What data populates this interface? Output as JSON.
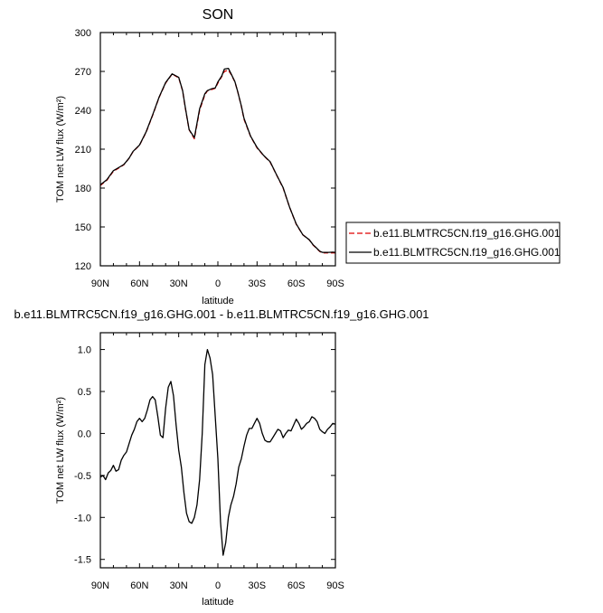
{
  "chart_data": [
    {
      "type": "line",
      "title": "SON",
      "xlabel": "latitude",
      "ylabel": "TOM net LW flux (W/m²)",
      "xlim": [
        90,
        -90
      ],
      "ylim": [
        120,
        300
      ],
      "xticks": [
        {
          "v": 90,
          "label": "90N"
        },
        {
          "v": 60,
          "label": "60N"
        },
        {
          "v": 30,
          "label": "30N"
        },
        {
          "v": 0,
          "label": "0"
        },
        {
          "v": -30,
          "label": "30S"
        },
        {
          "v": -60,
          "label": "60S"
        },
        {
          "v": -90,
          "label": "90S"
        }
      ],
      "yticks": [
        {
          "v": 120,
          "label": "120"
        },
        {
          "v": 150,
          "label": "150"
        },
        {
          "v": 180,
          "label": "180"
        },
        {
          "v": 210,
          "label": "210"
        },
        {
          "v": 240,
          "label": "240"
        },
        {
          "v": 270,
          "label": "270"
        },
        {
          "v": 300,
          "label": "300"
        }
      ],
      "legend_position": "right",
      "series": [
        {
          "name": "b.e11.BLMTRC5CN.f19_g16.GHG.001",
          "color": "#e00000",
          "dash": "dashed",
          "x": [
            90,
            85,
            80,
            75,
            72,
            68,
            65,
            60,
            55,
            50,
            45,
            40,
            35,
            30,
            27,
            25,
            22,
            18,
            14,
            10,
            8,
            5,
            2,
            0,
            -3,
            -5,
            -8,
            -10,
            -13,
            -15,
            -18,
            -20,
            -25,
            -30,
            -35,
            -40,
            -45,
            -50,
            -55,
            -60,
            -65,
            -70,
            -73,
            -75,
            -78,
            -80,
            -83,
            -85,
            -88,
            -90
          ],
          "y": [
            182,
            186,
            193,
            196,
            198,
            203,
            208,
            213,
            223,
            236,
            250,
            261,
            268,
            265,
            255,
            242,
            225,
            218,
            240,
            252,
            255,
            256,
            257,
            261,
            266,
            270,
            271,
            268,
            262,
            255,
            243,
            233,
            220,
            211,
            205,
            200,
            190,
            180,
            165,
            152,
            144,
            140,
            136,
            134,
            131,
            130,
            130,
            130,
            130,
            130
          ]
        },
        {
          "name": "b.e11.BLMTRC5CN.f19_g16.GHG.001",
          "color": "#000000",
          "dash": "solid",
          "x": [
            90,
            85,
            80,
            75,
            72,
            68,
            65,
            60,
            55,
            50,
            45,
            40,
            35,
            30,
            27,
            25,
            22,
            18,
            14,
            10,
            8,
            5,
            2,
            0,
            -3,
            -5,
            -8,
            -10,
            -13,
            -15,
            -18,
            -20,
            -25,
            -30,
            -35,
            -40,
            -45,
            -50,
            -55,
            -60,
            -65,
            -70,
            -73,
            -75,
            -78,
            -80,
            -83,
            -85,
            -88,
            -90
          ],
          "y": [
            182.5,
            186.4,
            193.4,
            196.4,
            198.2,
            203.1,
            208.2,
            213.2,
            223.3,
            236.4,
            250.2,
            261.4,
            268.1,
            265.4,
            255.2,
            242.5,
            225.1,
            218.9,
            241.1,
            252.8,
            255.2,
            256.5,
            257.2,
            261.9,
            266.5,
            271.8,
            272.4,
            268.5,
            262.2,
            255.1,
            243.2,
            233.8,
            220.2,
            211.4,
            205.2,
            200.4,
            190.1,
            180.3,
            165.1,
            152.3,
            144.0,
            140.1,
            136.2,
            134.3,
            131.3,
            130.4,
            130.3,
            130.4,
            130.5,
            130.4
          ]
        }
      ]
    },
    {
      "type": "line",
      "title": "b.e11.BLMTRC5CN.f19_g16.GHG.001 - b.e11.BLMTRC5CN.f19_g16.GHG.001",
      "xlabel": "latitude",
      "ylabel": "TOM net LW flux (W/m²)",
      "xlim": [
        90,
        -90
      ],
      "ylim": [
        -1.6,
        1.2
      ],
      "xticks": [
        {
          "v": 90,
          "label": "90N"
        },
        {
          "v": 60,
          "label": "60N"
        },
        {
          "v": 30,
          "label": "30N"
        },
        {
          "v": 0,
          "label": "0"
        },
        {
          "v": -30,
          "label": "30S"
        },
        {
          "v": -60,
          "label": "60S"
        },
        {
          "v": -90,
          "label": "90S"
        }
      ],
      "yticks": [
        {
          "v": 1.0,
          "label": "1.0"
        },
        {
          "v": 0.5,
          "label": "0.5"
        },
        {
          "v": 0.0,
          "label": "0.0"
        },
        {
          "v": -0.5,
          "label": "-0.5"
        },
        {
          "v": -1.0,
          "label": "-1.0"
        },
        {
          "v": -1.5,
          "label": "-1.5"
        }
      ],
      "series": [
        {
          "color": "#000000",
          "dash": "solid",
          "x": [
            90,
            88,
            86,
            84,
            82,
            80,
            78,
            76,
            74,
            72,
            70,
            68,
            66,
            64,
            62,
            60,
            58,
            56,
            54,
            52,
            50,
            48,
            46,
            44,
            42,
            40,
            38,
            36,
            34,
            32,
            30,
            28,
            26,
            24,
            22,
            20,
            18,
            16,
            14,
            12,
            10,
            8,
            6,
            4,
            2,
            0,
            -2,
            -4,
            -6,
            -8,
            -10,
            -12,
            -14,
            -16,
            -18,
            -20,
            -22,
            -24,
            -26,
            -28,
            -30,
            -32,
            -34,
            -36,
            -38,
            -40,
            -42,
            -44,
            -46,
            -48,
            -50,
            -52,
            -54,
            -56,
            -58,
            -60,
            -62,
            -64,
            -66,
            -68,
            -70,
            -72,
            -74,
            -76,
            -78,
            -80,
            -82,
            -84,
            -86,
            -88,
            -90
          ],
          "y": [
            -0.52,
            -0.5,
            -0.55,
            -0.47,
            -0.44,
            -0.38,
            -0.45,
            -0.43,
            -0.32,
            -0.26,
            -0.22,
            -0.12,
            -0.02,
            0.05,
            0.14,
            0.18,
            0.14,
            0.18,
            0.28,
            0.4,
            0.44,
            0.4,
            0.2,
            -0.02,
            -0.05,
            0.3,
            0.55,
            0.62,
            0.45,
            0.1,
            -0.2,
            -0.4,
            -0.7,
            -0.95,
            -1.05,
            -1.07,
            -1.0,
            -0.85,
            -0.55,
            0.0,
            0.82,
            1.0,
            0.9,
            0.7,
            0.2,
            -0.3,
            -1.05,
            -1.45,
            -1.3,
            -1.0,
            -0.85,
            -0.75,
            -0.6,
            -0.4,
            -0.3,
            -0.15,
            -0.02,
            0.06,
            0.06,
            0.12,
            0.18,
            0.12,
            0.0,
            -0.08,
            -0.1,
            -0.1,
            -0.05,
            0.0,
            0.05,
            0.03,
            -0.05,
            0.0,
            0.04,
            0.03,
            0.1,
            0.17,
            0.12,
            0.05,
            0.08,
            0.12,
            0.14,
            0.2,
            0.18,
            0.14,
            0.05,
            0.02,
            0.0,
            0.05,
            0.08,
            0.12,
            0.11
          ]
        }
      ]
    }
  ]
}
